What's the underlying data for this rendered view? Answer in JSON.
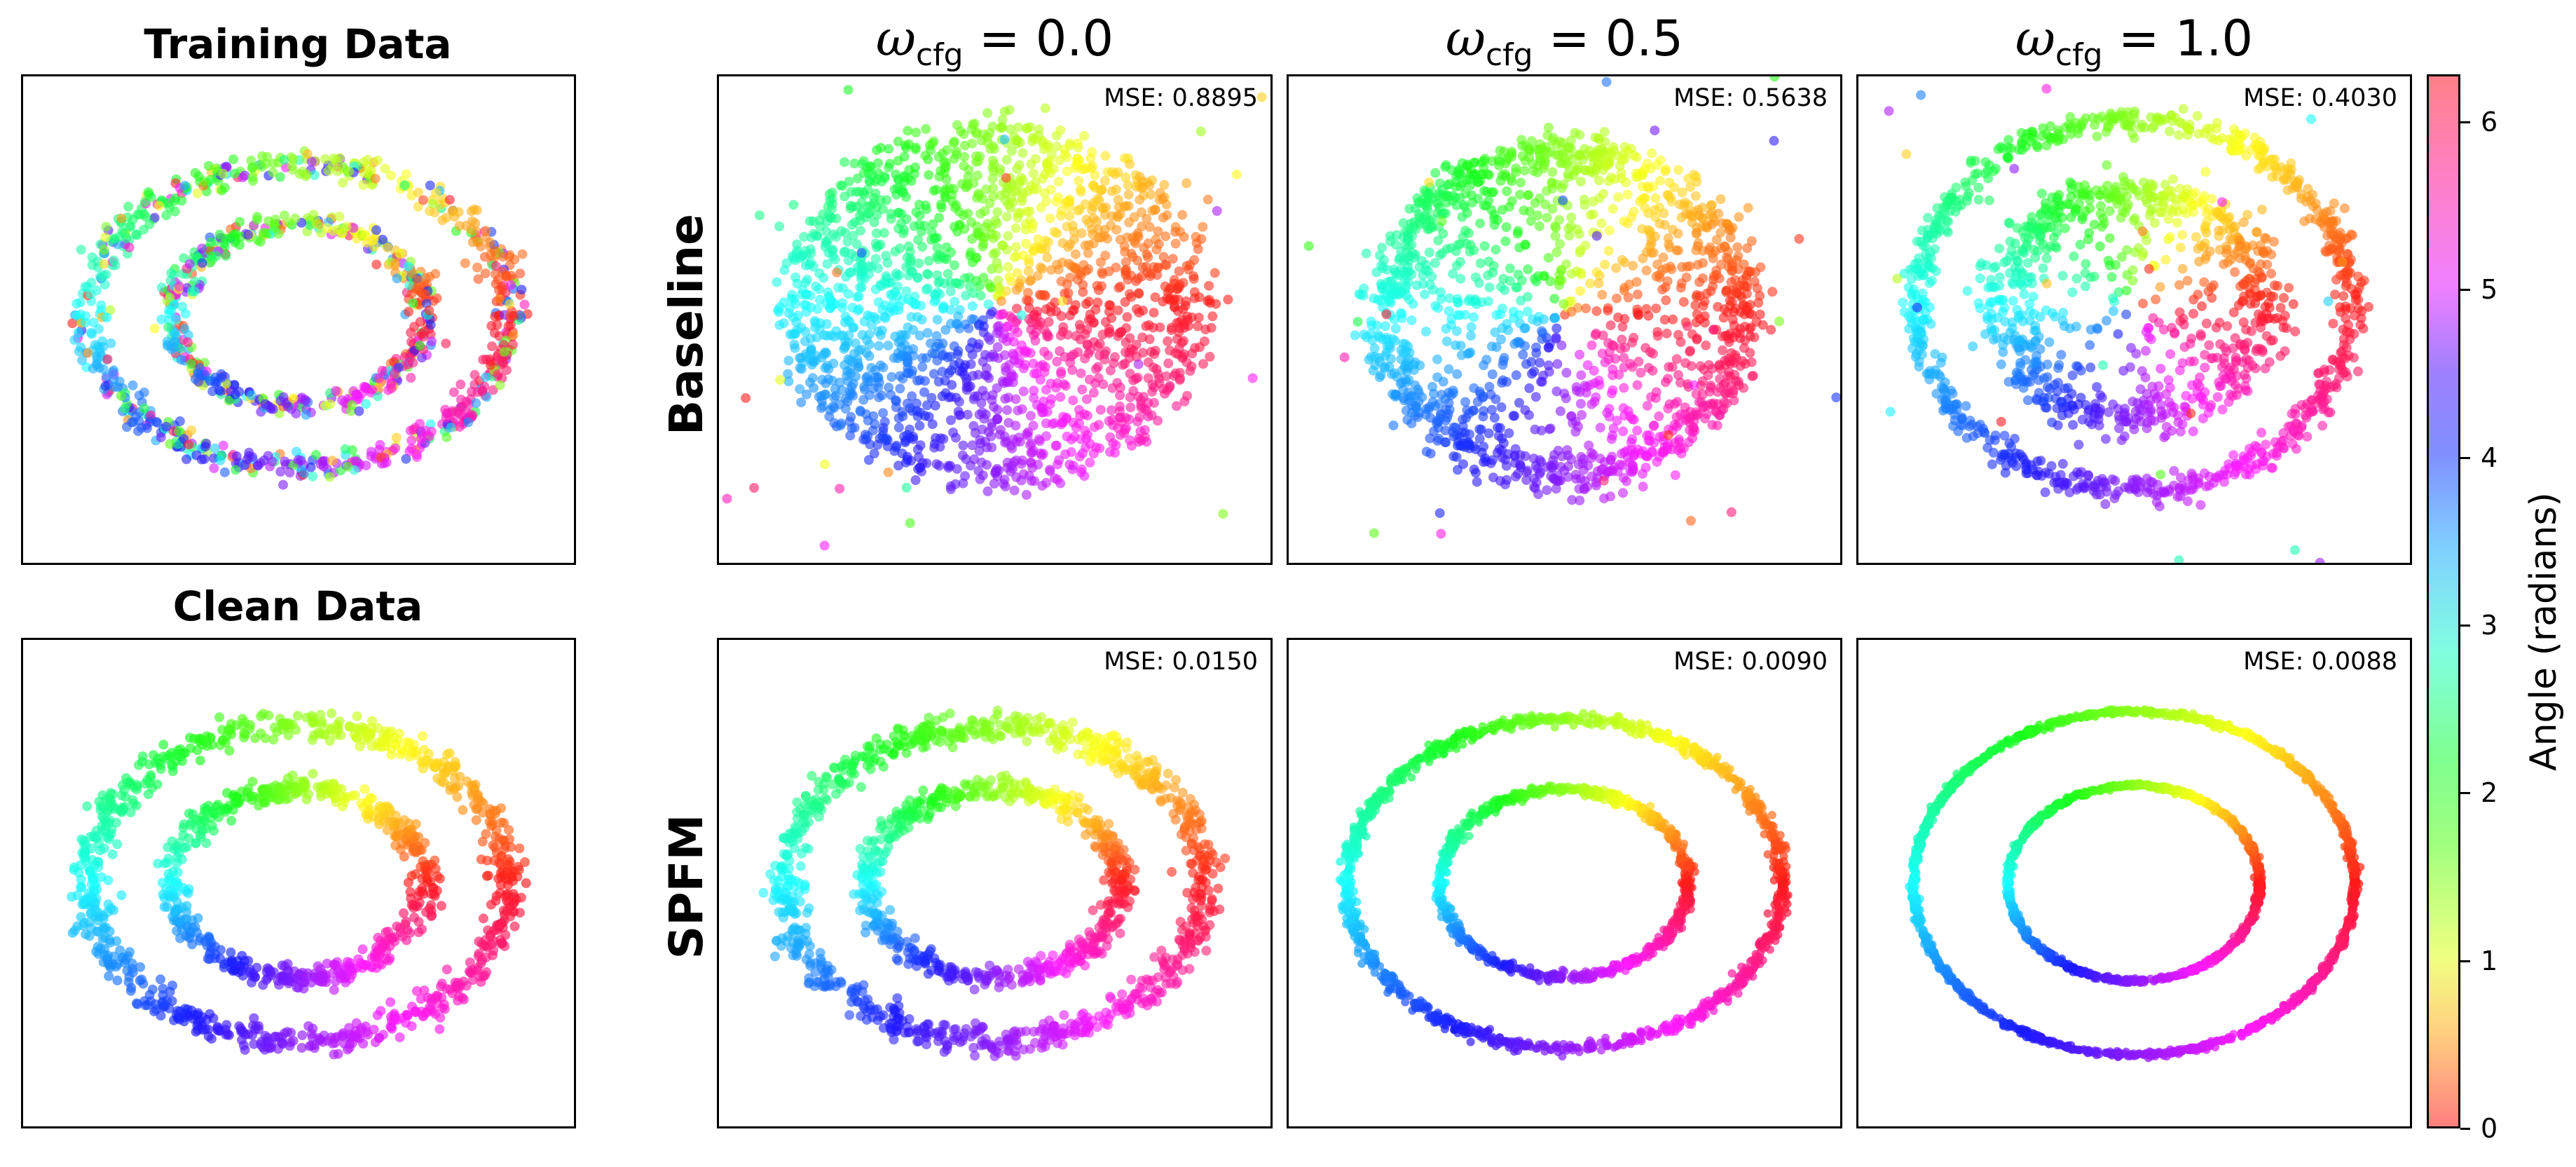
{
  "left_panels": {
    "training_title": "Training Data",
    "clean_title": "Clean Data"
  },
  "row_labels": {
    "top": "Baseline",
    "bottom": "SPFM"
  },
  "column_titles": [
    {
      "symbol": "ω",
      "subscript": "cfg",
      "value": " = 0.0"
    },
    {
      "symbol": "ω",
      "subscript": "cfg",
      "value": " = 0.5"
    },
    {
      "symbol": "ω",
      "subscript": "cfg",
      "value": " = 1.0"
    }
  ],
  "mse": {
    "baseline": [
      "MSE: 0.8895",
      "MSE: 0.5638",
      "MSE: 0.4030"
    ],
    "spfm": [
      "MSE: 0.0150",
      "MSE: 0.0090",
      "MSE: 0.0088"
    ]
  },
  "colorbar": {
    "label": "Angle (radians)",
    "ticks": [
      "0",
      "1",
      "2",
      "3",
      "4",
      "5",
      "6"
    ],
    "range": [
      0,
      6.2832
    ]
  },
  "chart_data": [
    {
      "type": "scatter",
      "title": "Training Data",
      "description_series": [
        {
          "name": "",
          "shape": "two noisy concentric rings",
          "outer_radius": 1.0,
          "inner_radius": 0.55,
          "noise": "medium, random colors mixed"
        }
      ]
    },
    {
      "type": "scatter",
      "title": "Clean Data",
      "description_series": [
        {
          "name": "",
          "shape": "two concentric rings colored by angle",
          "outer_radius": 1.0,
          "inner_radius": 0.55,
          "noise": "low"
        }
      ]
    },
    {
      "type": "scatter",
      "row": "Baseline",
      "omega_cfg": 0.0,
      "mse": 0.8895
    },
    {
      "type": "scatter",
      "row": "Baseline",
      "omega_cfg": 0.5,
      "mse": 0.5638
    },
    {
      "type": "scatter",
      "row": "Baseline",
      "omega_cfg": 1.0,
      "mse": 0.403
    },
    {
      "type": "scatter",
      "row": "SPFM",
      "omega_cfg": 0.0,
      "mse": 0.015
    },
    {
      "type": "scatter",
      "row": "SPFM",
      "omega_cfg": 0.5,
      "mse": 0.009
    },
    {
      "type": "scatter",
      "row": "SPFM",
      "omega_cfg": 1.0,
      "mse": 0.0088
    }
  ]
}
